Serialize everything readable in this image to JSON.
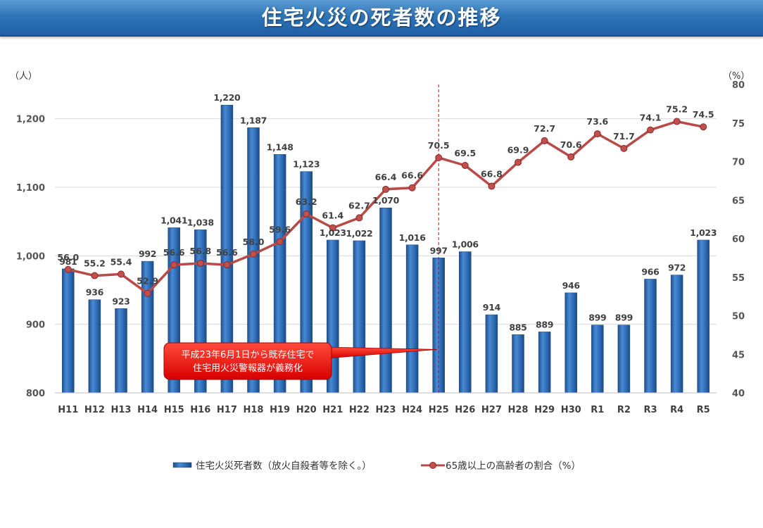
{
  "page": {
    "title": "住宅火災の死者数の推移"
  },
  "chart_data": {
    "type": "bar+line",
    "title": "住宅火災の死者数の推移",
    "categories": [
      "H11",
      "H12",
      "H13",
      "H14",
      "H15",
      "H16",
      "H17",
      "H18",
      "H19",
      "H20",
      "H21",
      "H22",
      "H23",
      "H24",
      "H25",
      "H26",
      "H27",
      "H28",
      "H29",
      "H30",
      "R1",
      "R2",
      "R3",
      "R4",
      "R5"
    ],
    "series": [
      {
        "name": "住宅火災死者数（放火自殺者等を除く。）",
        "type": "bar",
        "axis": "left",
        "values": [
          981,
          936,
          923,
          992,
          1041,
          1038,
          1220,
          1187,
          1148,
          1123,
          1023,
          1022,
          1070,
          1016,
          997,
          1006,
          914,
          885,
          889,
          946,
          899,
          899,
          966,
          972,
          1023
        ],
        "labels": [
          "981",
          "936",
          "923",
          "992",
          "1,041",
          "1,038",
          "1,220",
          "1,187",
          "1,148",
          "1,123",
          "1,023",
          "1,022",
          "1,070",
          "1,016",
          "997",
          "1,006",
          "914",
          "885",
          "889",
          "946",
          "899",
          "899",
          "966",
          "972",
          "1,023"
        ]
      },
      {
        "name": "65歳以上の高齢者の割合（%）",
        "type": "line",
        "axis": "right",
        "values": [
          56.0,
          55.2,
          55.4,
          52.9,
          56.6,
          56.8,
          56.6,
          58.0,
          59.6,
          63.2,
          61.4,
          62.7,
          66.4,
          66.6,
          70.5,
          69.5,
          66.8,
          69.9,
          72.7,
          70.6,
          73.6,
          71.7,
          74.1,
          75.2,
          74.5
        ],
        "labels": [
          "56.0",
          "55.2",
          "55.4",
          "52.9",
          "56.6",
          "56.8",
          "56.6",
          "58.0",
          "59.6",
          "63.2",
          "61.4",
          "62.7",
          "66.4",
          "66.6",
          "70.5",
          "69.5",
          "66.8",
          "69.9",
          "72.7",
          "70.6",
          "73.6",
          "71.7",
          "74.1",
          "75.2",
          "74.5"
        ]
      }
    ],
    "y_left": {
      "unit": "（人）",
      "ylim": [
        800,
        1250
      ],
      "ticks": [
        800,
        900,
        1000,
        1100,
        1200
      ],
      "tick_labels": [
        "800",
        "900",
        "1,000",
        "1,100",
        "1,200"
      ]
    },
    "y_right": {
      "unit": "（%）",
      "ylim": [
        40,
        80
      ],
      "ticks": [
        40,
        45,
        50,
        55,
        60,
        65,
        70,
        75,
        80
      ],
      "tick_labels": [
        "40",
        "45",
        "50",
        "55",
        "60",
        "65",
        "70",
        "75",
        "80"
      ]
    },
    "colors": {
      "bar": "#2e6fb8",
      "line": "#b94a48",
      "marker": "#c0504d",
      "annotation": "#e00000",
      "divider": "#e00000"
    },
    "annotation": {
      "lines": [
        "平成23年6月1日から既存住宅で",
        "住宅用火災警報器が義務化"
      ],
      "at_category": "H25"
    },
    "legend": {
      "placement": "bottom-center"
    }
  }
}
